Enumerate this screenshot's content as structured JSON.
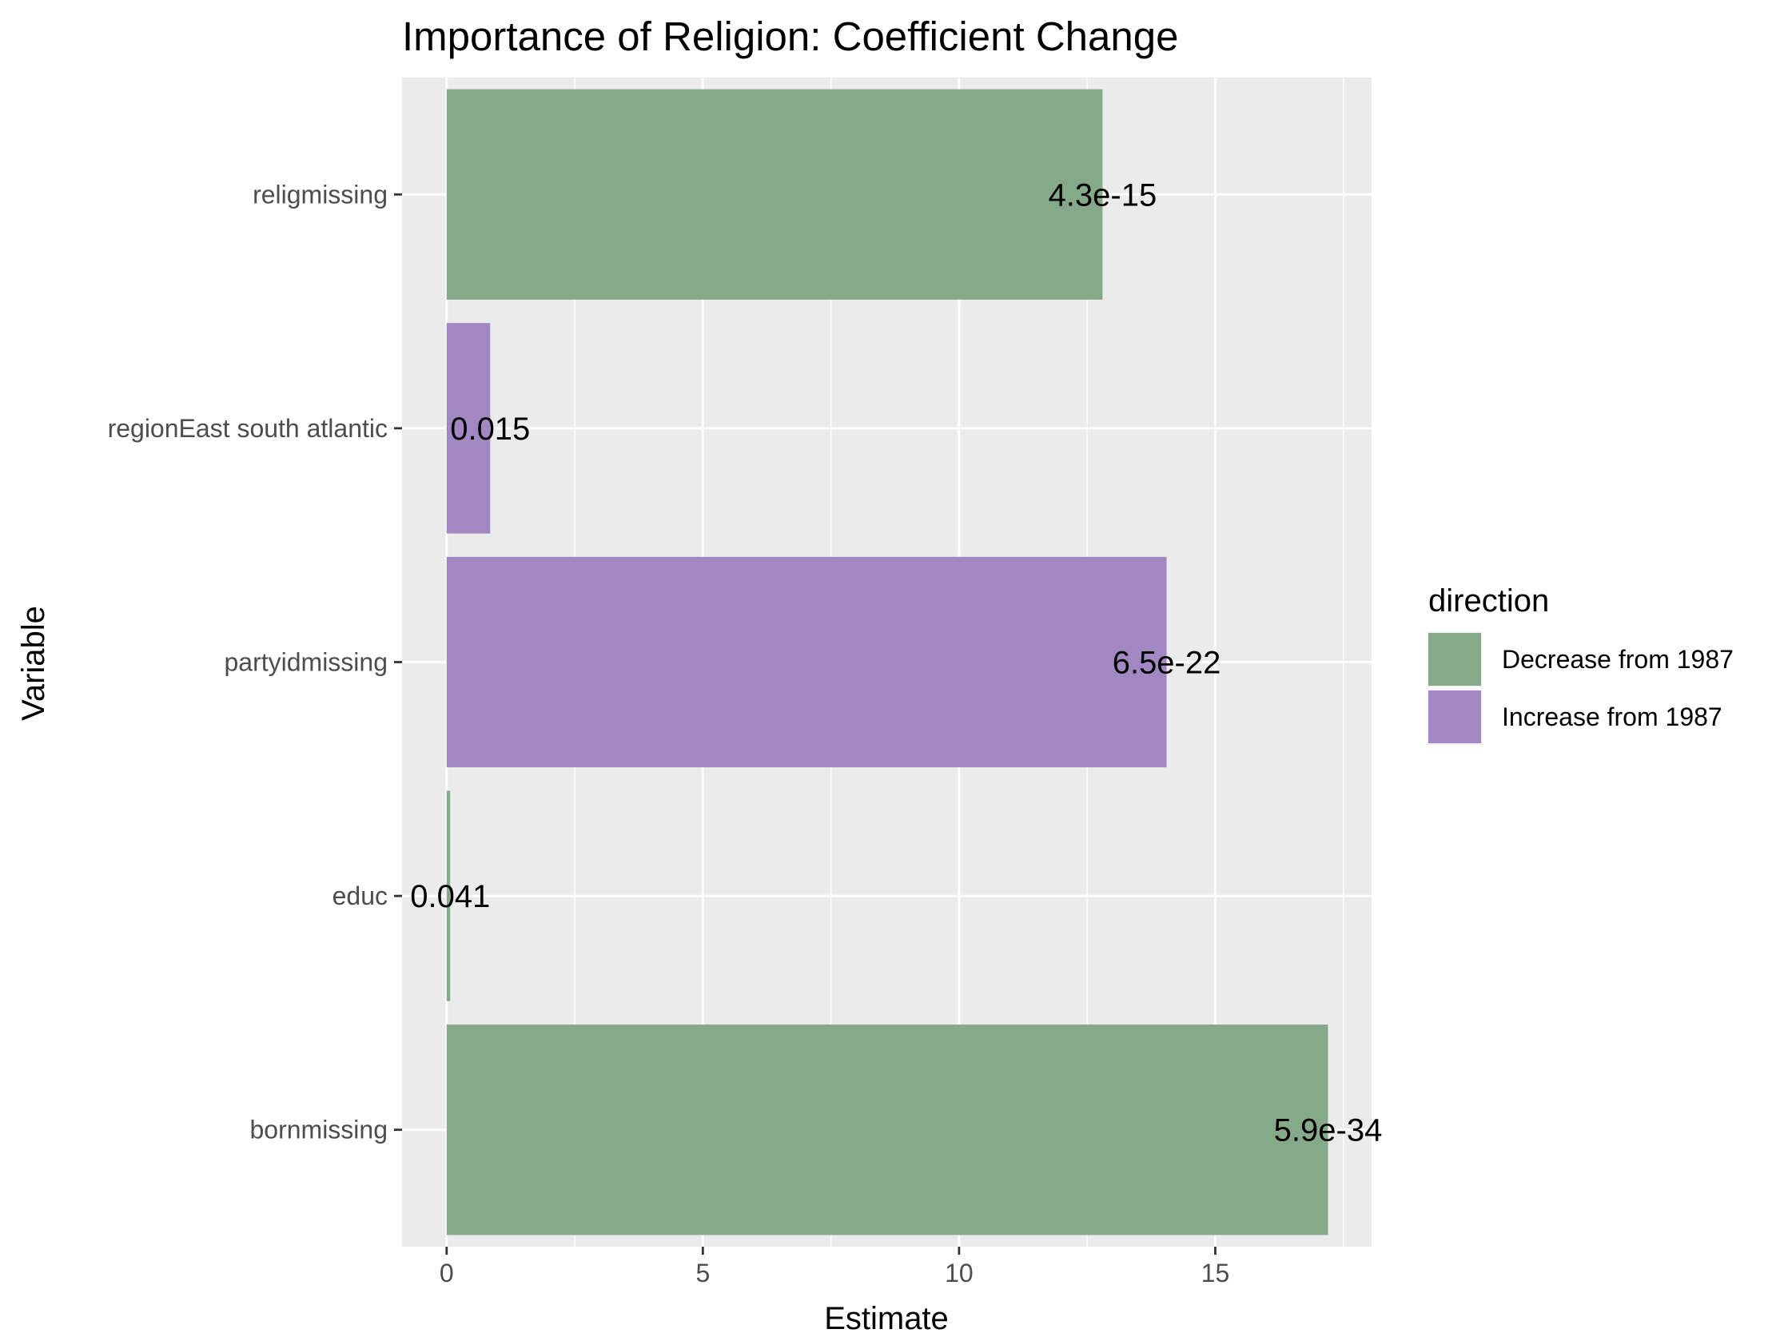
{
  "chart_data": {
    "type": "bar",
    "orientation": "horizontal",
    "title": "Importance of Religion: Coefficient Change",
    "xlabel": "Estimate",
    "ylabel": "Variable",
    "categories": [
      "religmissing",
      "regionEast south atlantic",
      "partyidmissing",
      "educ",
      "bornmissing"
    ],
    "values": [
      12.8,
      0.85,
      14.05,
      0.07,
      17.2
    ],
    "directions": [
      "Decrease from 1987",
      "Increase from 1987",
      "Increase from 1987",
      "Decrease from 1987",
      "Decrease from 1987"
    ],
    "labels": [
      "4.3e-15",
      "0.015",
      "6.5e-22",
      "0.041",
      "5.9e-34"
    ],
    "xlim": [
      -0.87,
      18.05
    ],
    "xticks": [
      0,
      5,
      10,
      15
    ],
    "grid": true,
    "panel_background": "#ebebeb",
    "legend": {
      "title": "direction",
      "position": "right",
      "entries": [
        {
          "name": "Decrease from 1987",
          "color": "#86a98a"
        },
        {
          "name": "Increase from 1987",
          "color": "#a188c2"
        }
      ]
    }
  }
}
